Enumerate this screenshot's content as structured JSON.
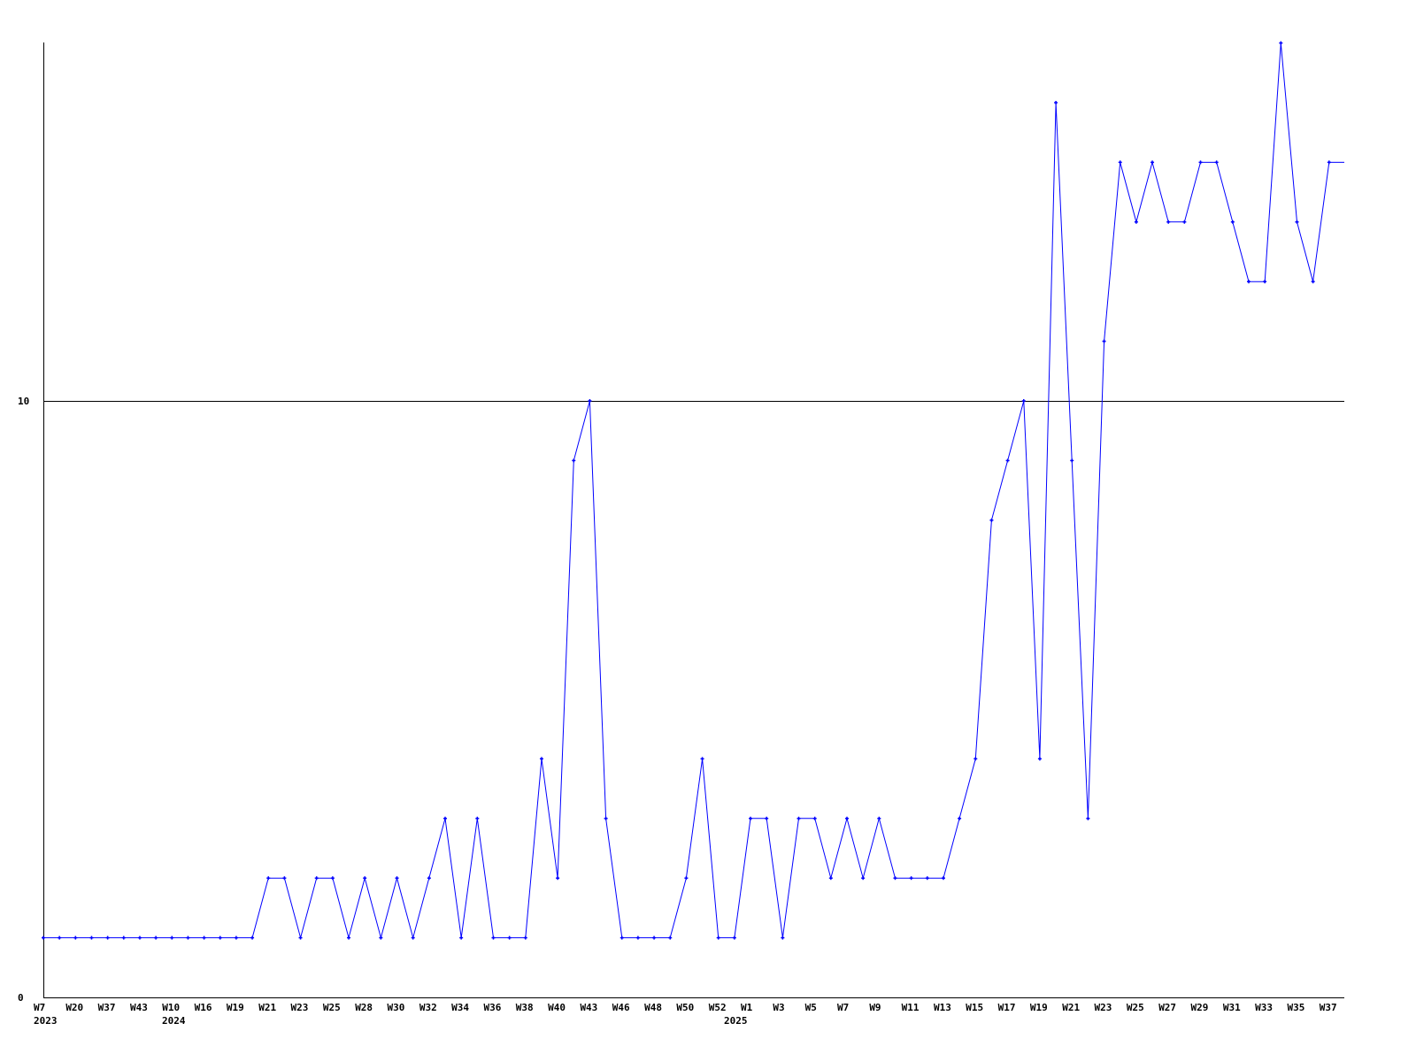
{
  "chart_data": {
    "type": "line",
    "title": "",
    "xlabel": "",
    "ylabel": "",
    "ylim": [
      0,
      16
    ],
    "y_tick_labels": [
      "0",
      "10"
    ],
    "y_ticks": [
      0,
      10
    ],
    "grid": "horizontal line at 10",
    "series_color": "#0000ff",
    "x_tick_labels": [
      "W7",
      "W20",
      "W37",
      "W43",
      "W10",
      "W16",
      "W19",
      "W21",
      "W23",
      "W25",
      "W28",
      "W30",
      "W32",
      "W34",
      "W36",
      "W38",
      "W40",
      "W43",
      "W46",
      "W48",
      "W50",
      "W52",
      "W1",
      "W3",
      "W5",
      "W7",
      "W9",
      "W11",
      "W13",
      "W15",
      "W17",
      "W19",
      "W21",
      "W23",
      "W25",
      "W27",
      "W29",
      "W31",
      "W33",
      "W35",
      "W37"
    ],
    "year_labels": [
      "2023",
      "2024",
      "2025"
    ],
    "values": [
      1,
      1,
      1,
      1,
      1,
      1,
      1,
      1,
      1,
      1,
      1,
      1,
      1,
      1,
      2,
      2,
      1,
      2,
      2,
      1,
      2,
      1,
      2,
      1,
      2,
      3,
      1,
      3,
      1,
      1,
      1,
      4,
      2,
      9,
      10,
      3,
      1,
      1,
      1,
      1,
      2,
      4,
      1,
      1,
      3,
      3,
      1,
      3,
      3,
      2,
      3,
      2,
      3,
      2,
      2,
      2,
      2,
      3,
      4,
      8,
      9,
      10,
      4,
      15,
      9,
      3,
      11,
      14,
      13,
      14,
      13,
      13,
      14,
      14,
      13,
      12,
      12,
      16,
      13,
      12,
      14
    ]
  }
}
